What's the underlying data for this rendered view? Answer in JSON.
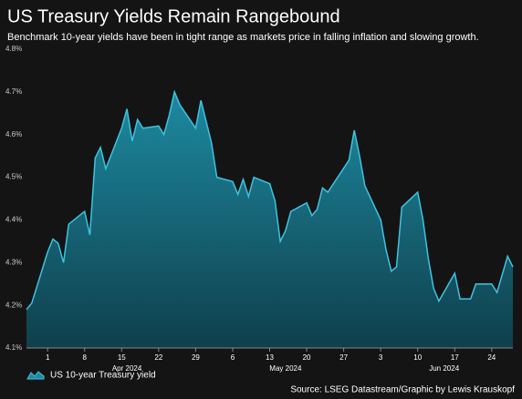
{
  "chart_data": {
    "type": "area",
    "title": "US Treasury Yields Remain Rangebound",
    "subtitle": "Benchmark 10-year yields have been in tight range as markets price in falling inflation and slowing growth.",
    "source": "Source: LSEG Datastream/Graphic by Lewis Krauskopf",
    "x": [
      "2024-03-28",
      "2024-03-29",
      "2024-04-01",
      "2024-04-02",
      "2024-04-03",
      "2024-04-04",
      "2024-04-05",
      "2024-04-08",
      "2024-04-09",
      "2024-04-10",
      "2024-04-11",
      "2024-04-12",
      "2024-04-15",
      "2024-04-16",
      "2024-04-17",
      "2024-04-18",
      "2024-04-19",
      "2024-04-22",
      "2024-04-23",
      "2024-04-24",
      "2024-04-25",
      "2024-04-26",
      "2024-04-29",
      "2024-04-30",
      "2024-05-01",
      "2024-05-02",
      "2024-05-03",
      "2024-05-06",
      "2024-05-07",
      "2024-05-08",
      "2024-05-09",
      "2024-05-10",
      "2024-05-13",
      "2024-05-14",
      "2024-05-15",
      "2024-05-16",
      "2024-05-17",
      "2024-05-20",
      "2024-05-21",
      "2024-05-22",
      "2024-05-23",
      "2024-05-24",
      "2024-05-28",
      "2024-05-29",
      "2024-05-30",
      "2024-05-31",
      "2024-06-03",
      "2024-06-04",
      "2024-06-05",
      "2024-06-06",
      "2024-06-07",
      "2024-06-10",
      "2024-06-11",
      "2024-06-12",
      "2024-06-13",
      "2024-06-14",
      "2024-06-17",
      "2024-06-18",
      "2024-06-20",
      "2024-06-21",
      "2024-06-24",
      "2024-06-25",
      "2024-06-27",
      "2024-06-28"
    ],
    "series": [
      {
        "name": "US 10-year Treasury yield",
        "color": "#3fc3e0",
        "values": [
          4.19,
          4.205,
          4.325,
          4.355,
          4.345,
          4.3,
          4.39,
          4.42,
          4.365,
          4.545,
          4.57,
          4.52,
          4.615,
          4.66,
          4.585,
          4.635,
          4.615,
          4.62,
          4.6,
          4.645,
          4.7,
          4.67,
          4.615,
          4.68,
          4.63,
          4.58,
          4.5,
          4.49,
          4.46,
          4.495,
          4.455,
          4.5,
          4.485,
          4.445,
          4.35,
          4.375,
          4.42,
          4.44,
          4.41,
          4.425,
          4.475,
          4.465,
          4.54,
          4.61,
          4.55,
          4.48,
          4.4,
          4.33,
          4.28,
          4.29,
          4.43,
          4.465,
          4.4,
          4.31,
          4.24,
          4.21,
          4.275,
          4.215,
          4.215,
          4.25,
          4.25,
          4.23,
          4.315,
          4.29
        ]
      }
    ],
    "xlim": [
      "2024-03-28",
      "2024-06-28"
    ],
    "xticks": [
      {
        "value": "2024-04-01",
        "label": "1"
      },
      {
        "value": "2024-04-08",
        "label": "8"
      },
      {
        "value": "2024-04-15",
        "label": "15"
      },
      {
        "value": "2024-04-22",
        "label": "22"
      },
      {
        "value": "2024-04-29",
        "label": "29"
      },
      {
        "value": "2024-05-06",
        "label": "6"
      },
      {
        "value": "2024-05-13",
        "label": "13"
      },
      {
        "value": "2024-05-20",
        "label": "20"
      },
      {
        "value": "2024-05-27",
        "label": "27"
      },
      {
        "value": "2024-06-03",
        "label": "3"
      },
      {
        "value": "2024-06-10",
        "label": "10"
      },
      {
        "value": "2024-06-17",
        "label": "17"
      },
      {
        "value": "2024-06-24",
        "label": "24"
      }
    ],
    "month_labels": [
      {
        "value": "2024-04-16",
        "label": "Apr 2024"
      },
      {
        "value": "2024-05-16",
        "label": "May 2024"
      },
      {
        "value": "2024-06-15",
        "label": "Jun 2024"
      }
    ],
    "ylim": [
      4.1,
      4.8
    ],
    "yticks": [
      {
        "value": 4.1,
        "label": "4.1%"
      },
      {
        "value": 4.2,
        "label": "4.2%"
      },
      {
        "value": 4.3,
        "label": "4.3%"
      },
      {
        "value": 4.4,
        "label": "4.4%"
      },
      {
        "value": 4.5,
        "label": "4.5%"
      },
      {
        "value": 4.6,
        "label": "4.6%"
      },
      {
        "value": 4.7,
        "label": "4.7%"
      },
      {
        "value": 4.8,
        "label": "4.8%"
      }
    ],
    "grid": false,
    "legend": "bottom-left"
  }
}
